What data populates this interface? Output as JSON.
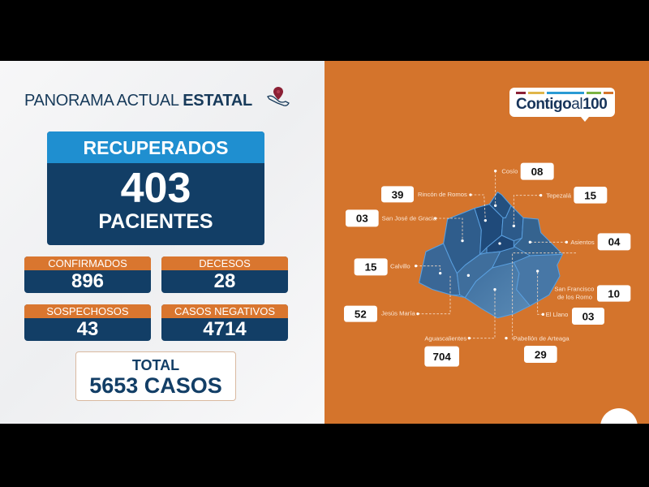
{
  "header": {
    "title_light": "PANORAMA ACTUAL ",
    "title_bold": "ESTATAL",
    "icon": "mexico-map-pin-icon"
  },
  "recuperados": {
    "label": "RECUPERADOS",
    "value": "403",
    "unit": "PACIENTES"
  },
  "stats": [
    {
      "label": "CONFIRMADOS",
      "value": "896"
    },
    {
      "label": "DECESOS",
      "value": "28"
    },
    {
      "label": "SOSPECHOSOS",
      "value": "43"
    },
    {
      "label": "CASOS NEGATIVOS",
      "value": "4714"
    }
  ],
  "total": {
    "label": "TOTAL",
    "value": "5653 CASOS"
  },
  "logo": {
    "text_main": "Contigo",
    "text_al": "al",
    "text_num": "100",
    "bar_colors": [
      "#8b2035",
      "#e0b64a",
      "#2a9bd4",
      "#7cb342",
      "#d4742c"
    ]
  },
  "colors": {
    "orange": "#d4742c",
    "navy": "#123e66",
    "light_blue": "#1f8fd0"
  },
  "municipios": [
    {
      "name": "Cosío",
      "value": "08"
    },
    {
      "name": "Rincón de Romos",
      "value": "39"
    },
    {
      "name": "Tepezalá",
      "value": "15"
    },
    {
      "name": "San José de Gracia",
      "value": "03"
    },
    {
      "name": "Asientos",
      "value": "04"
    },
    {
      "name": "Calvillo",
      "value": "15"
    },
    {
      "name_line1": "San Francisco",
      "name_line2": "de los Romo",
      "value": "10"
    },
    {
      "name": "El Llano",
      "value": "03"
    },
    {
      "name": "Jesús María",
      "value": "52"
    },
    {
      "name": "Aguascalientes",
      "value": "704"
    },
    {
      "name": "Pabellón de Arteaga",
      "value": "29"
    }
  ]
}
